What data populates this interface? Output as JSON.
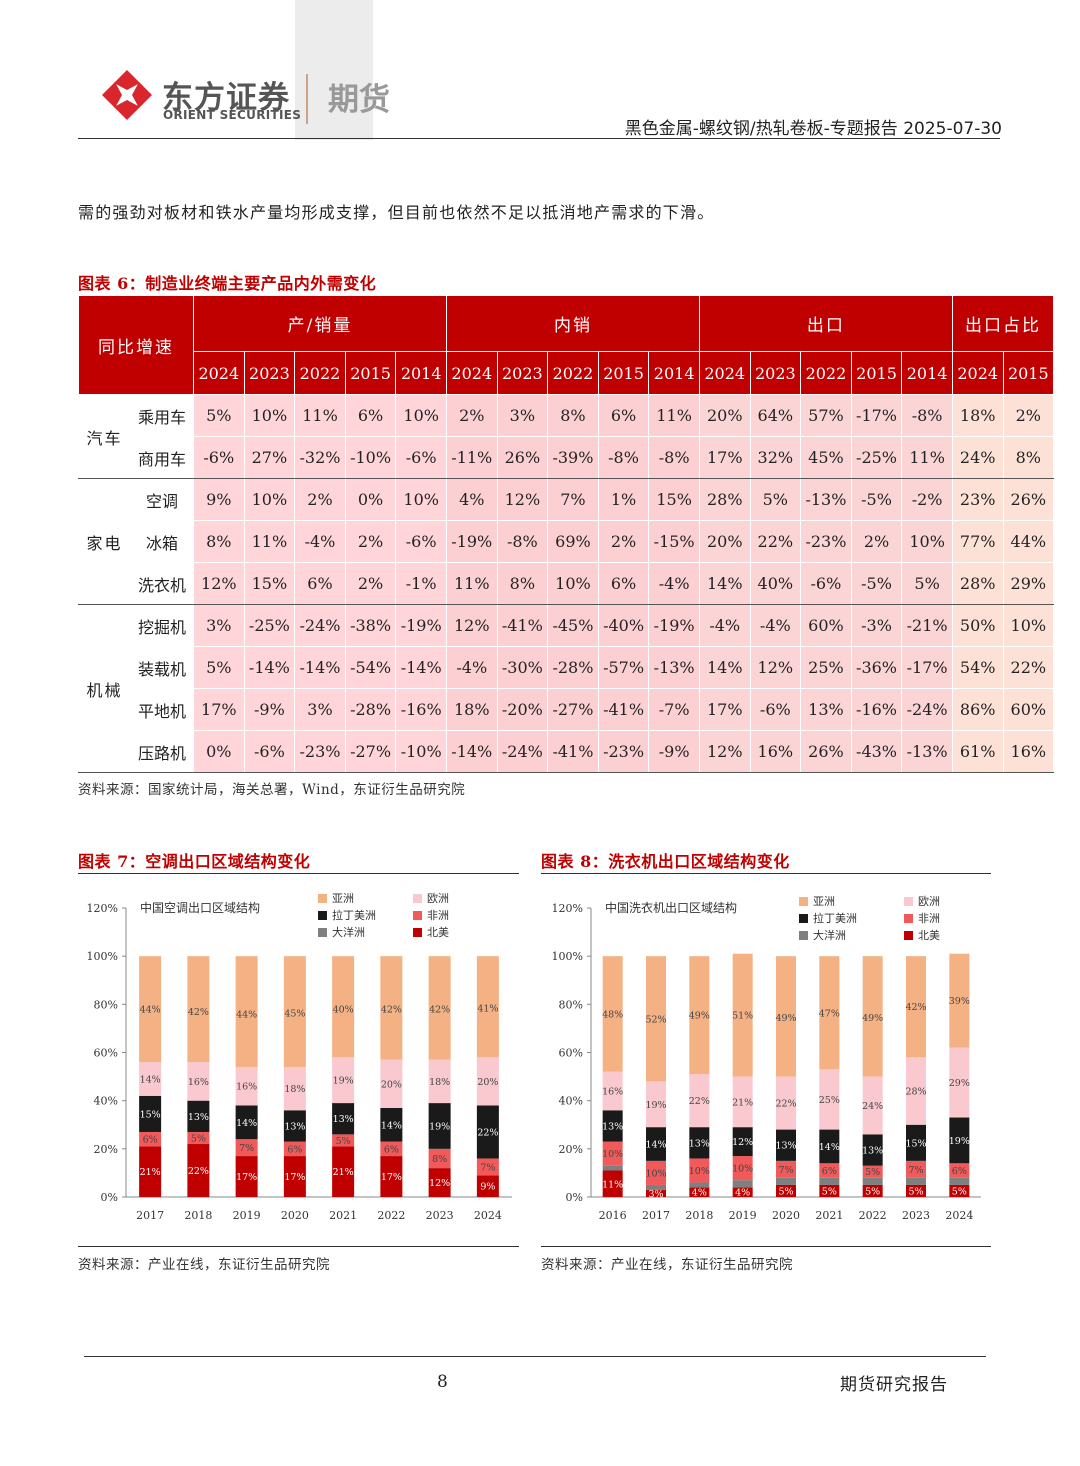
{
  "header": {
    "company_cn": "东方证券",
    "company_en": "ORIENT SECURITIES",
    "division": "期货",
    "report_title": "黑色金属-螺纹钢/热轧卷板-专题报告 2025-07-30"
  },
  "intro_text": "需的强劲对板材和铁水产量均形成支撑，但目前也依然不足以抵消地产需求的下滑。",
  "table6": {
    "title": "图表 6：制造业终端主要产品内外需变化",
    "corner": "同比增速",
    "groups": [
      {
        "label": "产/销量",
        "years": [
          "2024",
          "2023",
          "2022",
          "2015",
          "2014"
        ]
      },
      {
        "label": "内销",
        "years": [
          "2024",
          "2023",
          "2022",
          "2015",
          "2014"
        ]
      },
      {
        "label": "出口",
        "years": [
          "2024",
          "2023",
          "2022",
          "2015",
          "2014"
        ]
      },
      {
        "label": "出口占比",
        "years": [
          "2024",
          "2015"
        ]
      }
    ],
    "categories": [
      {
        "name": "汽车",
        "rows": [
          {
            "label": "乘用车",
            "values": [
              "5%",
              "10%",
              "11%",
              "6%",
              "10%",
              "2%",
              "3%",
              "8%",
              "6%",
              "11%",
              "20%",
              "64%",
              "57%",
              "-17%",
              "-8%",
              "18%",
              "2%"
            ]
          },
          {
            "label": "商用车",
            "values": [
              "-6%",
              "27%",
              "-32%",
              "-10%",
              "-6%",
              "-11%",
              "26%",
              "-39%",
              "-8%",
              "-8%",
              "17%",
              "32%",
              "45%",
              "-25%",
              "11%",
              "24%",
              "8%"
            ]
          }
        ]
      },
      {
        "name": "家电",
        "rows": [
          {
            "label": "空调",
            "values": [
              "9%",
              "10%",
              "2%",
              "0%",
              "10%",
              "4%",
              "12%",
              "7%",
              "1%",
              "15%",
              "28%",
              "5%",
              "-13%",
              "-5%",
              "-2%",
              "23%",
              "26%"
            ]
          },
          {
            "label": "冰箱",
            "values": [
              "8%",
              "11%",
              "-4%",
              "2%",
              "-6%",
              "-19%",
              "-8%",
              "69%",
              "2%",
              "-15%",
              "20%",
              "22%",
              "-23%",
              "2%",
              "10%",
              "77%",
              "44%"
            ]
          },
          {
            "label": "洗衣机",
            "values": [
              "12%",
              "15%",
              "6%",
              "2%",
              "-1%",
              "11%",
              "8%",
              "10%",
              "6%",
              "-4%",
              "14%",
              "40%",
              "-6%",
              "-5%",
              "5%",
              "28%",
              "29%"
            ]
          }
        ]
      },
      {
        "name": "机械",
        "rows": [
          {
            "label": "挖掘机",
            "values": [
              "3%",
              "-25%",
              "-24%",
              "-38%",
              "-19%",
              "12%",
              "-41%",
              "-45%",
              "-40%",
              "-19%",
              "-4%",
              "-4%",
              "60%",
              "-3%",
              "-21%",
              "50%",
              "10%"
            ]
          },
          {
            "label": "装载机",
            "values": [
              "5%",
              "-14%",
              "-14%",
              "-54%",
              "-14%",
              "-4%",
              "-30%",
              "-28%",
              "-57%",
              "-13%",
              "14%",
              "12%",
              "25%",
              "-36%",
              "-17%",
              "54%",
              "22%"
            ]
          },
          {
            "label": "平地机",
            "values": [
              "17%",
              "-9%",
              "3%",
              "-28%",
              "-16%",
              "18%",
              "-20%",
              "-27%",
              "-41%",
              "-7%",
              "17%",
              "-6%",
              "13%",
              "-16%",
              "-24%",
              "86%",
              "60%"
            ]
          },
          {
            "label": "压路机",
            "values": [
              "0%",
              "-6%",
              "-23%",
              "-27%",
              "-10%",
              "-14%",
              "-24%",
              "-41%",
              "-23%",
              "-9%",
              "12%",
              "16%",
              "26%",
              "-43%",
              "-13%",
              "61%",
              "16%"
            ]
          }
        ]
      }
    ],
    "colors": {
      "header": "#c00000",
      "domestic_prod": "#ffd5d9",
      "domestic_sales": "#fcd0d2",
      "export": "#fbd4d6",
      "share": "#fde1d7"
    },
    "source": "资料来源：国家统计局，海关总署，Wind，东证衍生品研究院"
  },
  "chart_data": [
    {
      "type": "bar",
      "stacked": true,
      "figure_title": "图表 7：空调出口区域结构变化",
      "title": "中国空调出口区域结构",
      "categories": [
        "2017",
        "2018",
        "2019",
        "2020",
        "2021",
        "2022",
        "2023",
        "2024"
      ],
      "ylim": [
        0,
        120
      ],
      "yticks": [
        "0%",
        "20%",
        "40%",
        "60%",
        "80%",
        "100%",
        "120%"
      ],
      "series": [
        {
          "name": "北美",
          "color": "#c00000",
          "values": [
            21,
            22,
            17,
            17,
            21,
            17,
            12,
            9
          ],
          "labels": [
            "21%",
            "22%",
            "17%",
            "17%",
            "21%",
            "17%",
            "12%",
            "9%"
          ]
        },
        {
          "name": "大洋洲",
          "color": "#7f7f7f",
          "values": [
            0,
            0,
            0,
            0,
            0,
            0,
            0,
            0
          ]
        },
        {
          "name": "非洲",
          "color": "#f05a5a",
          "values": [
            6,
            5,
            7,
            6,
            5,
            6,
            8,
            7
          ],
          "labels": [
            "6%",
            "5%",
            "7%",
            "6%",
            "5%",
            "6%",
            "8%",
            "7%"
          ]
        },
        {
          "name": "拉丁美洲",
          "color": "#1a1a1a",
          "values": [
            15,
            13,
            14,
            13,
            13,
            14,
            19,
            22
          ],
          "labels": [
            "15%",
            "13%",
            "14%",
            "13%",
            "13%",
            "14%",
            "19%",
            "22%"
          ]
        },
        {
          "name": "欧洲",
          "color": "#f9c9cf",
          "values": [
            14,
            16,
            16,
            18,
            19,
            20,
            18,
            20
          ],
          "labels": [
            "14%",
            "16%",
            "16%",
            "18%",
            "19%",
            "20%",
            "18%",
            "20%"
          ]
        },
        {
          "name": "亚洲",
          "color": "#f4b183",
          "values": [
            44,
            42,
            44,
            45,
            40,
            42,
            42,
            41
          ],
          "labels": [
            "44%",
            "42%",
            "44%",
            "45%",
            "40%",
            "42%",
            "42%",
            "41%"
          ]
        }
      ],
      "legend_order": [
        "亚洲",
        "欧洲",
        "拉丁美洲",
        "非洲",
        "大洋洲",
        "北美"
      ],
      "source": "资料来源：产业在线，东证衍生品研究院"
    },
    {
      "type": "bar",
      "stacked": true,
      "figure_title": "图表 8：洗衣机出口区域结构变化",
      "title": "中国洗衣机出口区域结构",
      "categories": [
        "2016",
        "2017",
        "2018",
        "2019",
        "2020",
        "2021",
        "2022",
        "2023",
        "2024"
      ],
      "ylim": [
        0,
        120
      ],
      "yticks": [
        "0%",
        "20%",
        "40%",
        "60%",
        "80%",
        "100%",
        "120%"
      ],
      "series": [
        {
          "name": "北美",
          "color": "#c00000",
          "values": [
            11,
            3,
            4,
            4,
            5,
            5,
            5,
            5,
            5
          ],
          "labels": [
            "11%",
            "3%",
            "4%",
            "4%",
            "5%",
            "5%",
            "5%",
            "5%",
            "5%"
          ]
        },
        {
          "name": "大洋洲",
          "color": "#7f7f7f",
          "values": [
            2,
            2,
            2,
            3,
            3,
            3,
            3,
            3,
            3
          ]
        },
        {
          "name": "非洲",
          "color": "#f05a5a",
          "values": [
            10,
            10,
            10,
            10,
            7,
            6,
            5,
            7,
            6
          ],
          "labels": [
            "10%",
            "10%",
            "10%",
            "10%",
            "7%",
            "6%",
            "5%",
            "7%",
            "6%"
          ]
        },
        {
          "name": "拉丁美洲",
          "color": "#1a1a1a",
          "values": [
            13,
            14,
            13,
            12,
            13,
            14,
            13,
            15,
            19
          ],
          "labels": [
            "13%",
            "14%",
            "13%",
            "12%",
            "13%",
            "14%",
            "13%",
            "15%",
            "19%"
          ]
        },
        {
          "name": "欧洲",
          "color": "#f9c9cf",
          "values": [
            16,
            19,
            22,
            21,
            22,
            25,
            24,
            28,
            29
          ],
          "labels": [
            "16%",
            "19%",
            "22%",
            "21%",
            "22%",
            "25%",
            "24%",
            "28%",
            "29%"
          ]
        },
        {
          "name": "亚洲",
          "color": "#f4b183",
          "values": [
            48,
            52,
            49,
            51,
            49,
            47,
            49,
            42,
            39
          ],
          "labels": [
            "48%",
            "52%",
            "49%",
            "51%",
            "49%",
            "47%",
            "49%",
            "42%",
            "39%"
          ]
        }
      ],
      "legend_order": [
        "亚洲",
        "欧洲",
        "拉丁美洲",
        "非洲",
        "大洋洲",
        "北美"
      ],
      "source": "资料来源：产业在线，东证衍生品研究院"
    }
  ],
  "footer": {
    "page_number": "8",
    "label": "期货研究报告"
  }
}
